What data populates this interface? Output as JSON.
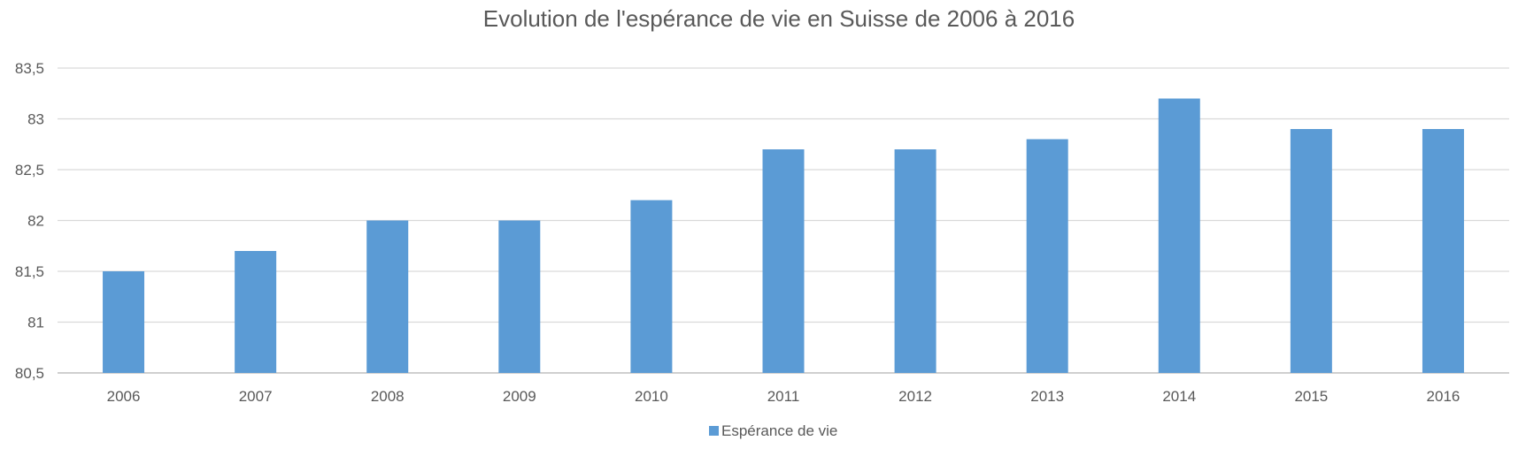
{
  "chart_data": {
    "type": "bar",
    "title": "Evolution de l'espérance de vie en Suisse de 2006 à 2016",
    "categories": [
      "2006",
      "2007",
      "2008",
      "2009",
      "2010",
      "2011",
      "2012",
      "2013",
      "2014",
      "2015",
      "2016"
    ],
    "series": [
      {
        "name": "Espérance de vie",
        "values": [
          81.5,
          81.7,
          82.0,
          82.0,
          82.2,
          82.7,
          82.7,
          82.8,
          83.2,
          82.9,
          82.9
        ]
      }
    ],
    "ylim": [
      80.5,
      83.5
    ],
    "yticks": [
      80.5,
      81,
      81.5,
      82,
      82.5,
      83,
      83.5
    ],
    "ytick_labels": [
      "80,5",
      "81",
      "81,5",
      "82",
      "82,5",
      "83",
      "83,5"
    ],
    "grid": true,
    "legend": "bottom-center",
    "colors": {
      "bar": "#5B9BD5",
      "grid": "#D9D9D9",
      "axis": "#BFBFBF",
      "text": "#595959"
    }
  }
}
